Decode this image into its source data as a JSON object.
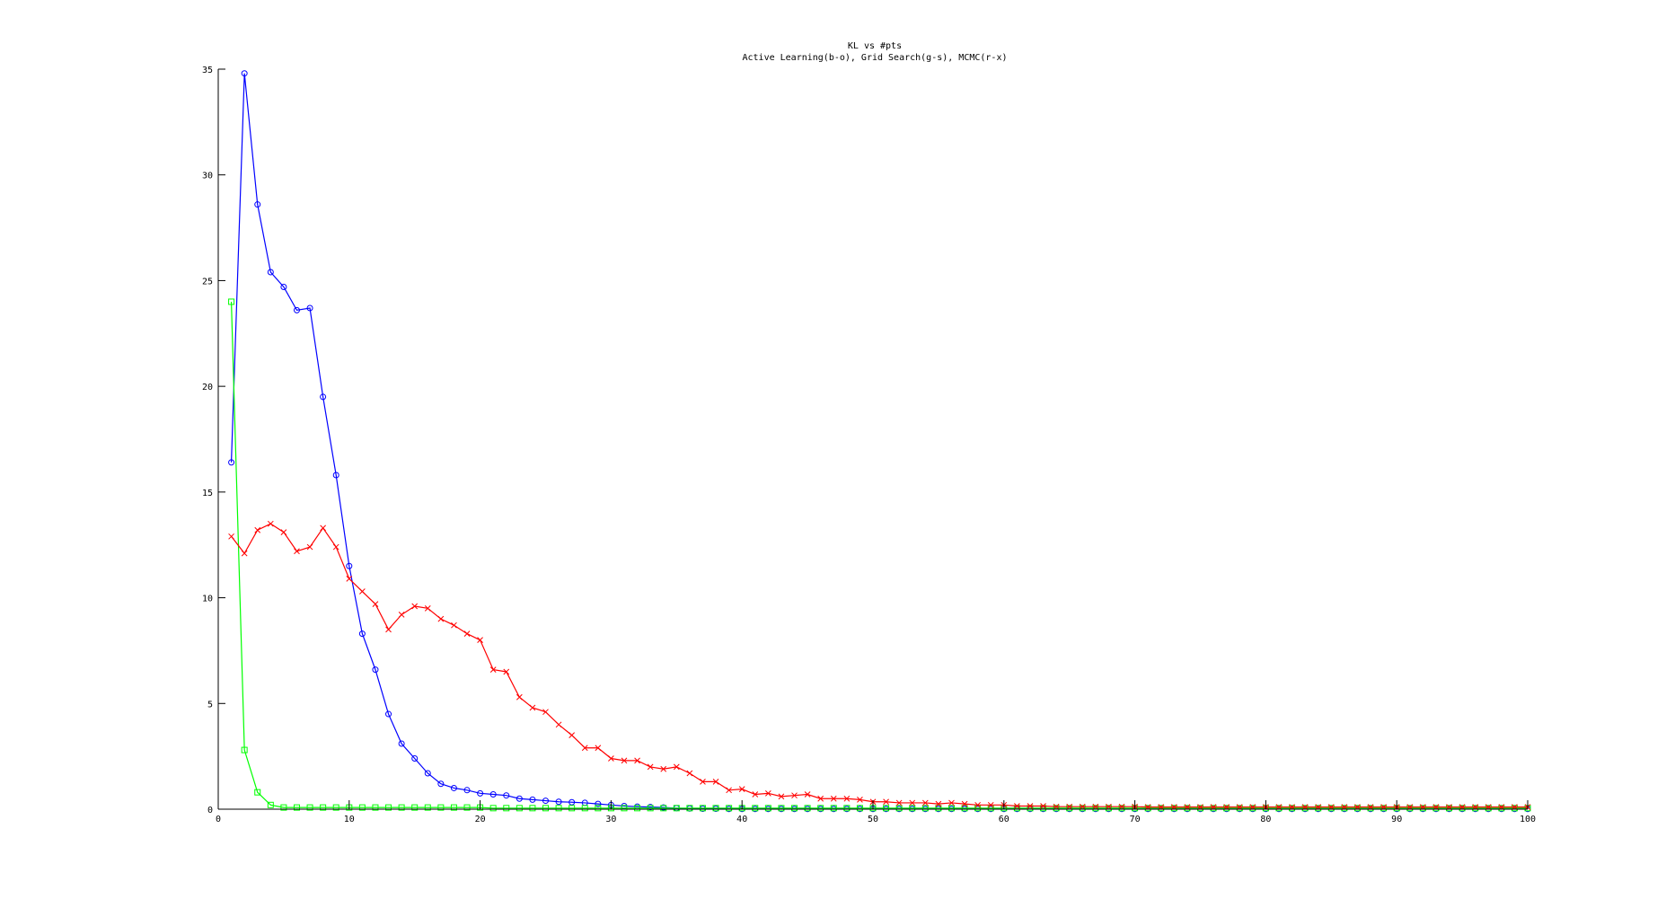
{
  "chart_data": {
    "type": "line",
    "title": "KL vs #pts",
    "subtitle": "Active Learning(b-o), Grid Search(g-s), MCMC(r-x)",
    "xlabel": "",
    "ylabel": "",
    "xlim": [
      0,
      100
    ],
    "ylim": [
      0,
      35
    ],
    "xticks": [
      0,
      10,
      20,
      30,
      40,
      50,
      60,
      70,
      80,
      90,
      100
    ],
    "yticks": [
      0,
      5,
      10,
      15,
      20,
      25,
      30,
      35
    ],
    "grid": false,
    "legend": "none",
    "x": [
      1,
      2,
      3,
      4,
      5,
      6,
      7,
      8,
      9,
      10,
      11,
      12,
      13,
      14,
      15,
      16,
      17,
      18,
      19,
      20,
      21,
      22,
      23,
      24,
      25,
      26,
      27,
      28,
      29,
      30,
      31,
      32,
      33,
      34,
      35,
      36,
      37,
      38,
      39,
      40,
      41,
      42,
      43,
      44,
      45,
      46,
      47,
      48,
      49,
      50,
      51,
      52,
      53,
      54,
      55,
      56,
      57,
      58,
      59,
      60,
      61,
      62,
      63,
      64,
      65,
      66,
      67,
      68,
      69,
      70,
      71,
      72,
      73,
      74,
      75,
      76,
      77,
      78,
      79,
      80,
      81,
      82,
      83,
      84,
      85,
      86,
      87,
      88,
      89,
      90,
      91,
      92,
      93,
      94,
      95,
      96,
      97,
      98,
      99,
      100
    ],
    "series": [
      {
        "color": "#0000ff",
        "marker": "circle",
        "values": [
          16.4,
          34.8,
          28.6,
          25.4,
          24.7,
          23.6,
          23.7,
          19.5,
          15.8,
          11.5,
          8.3,
          6.6,
          4.5,
          3.1,
          2.4,
          1.7,
          1.2,
          1.0,
          0.9,
          0.75,
          0.7,
          0.65,
          0.5,
          0.45,
          0.4,
          0.35,
          0.33,
          0.3,
          0.25,
          0.2,
          0.15,
          0.12,
          0.1,
          0.08,
          0.05,
          0.03,
          0.02,
          0.02,
          0.01,
          0.01,
          0.01,
          0.01,
          0.01,
          0.01,
          0.01,
          0.01,
          0.01,
          0.01,
          0.01,
          0.01,
          0.01,
          0.01,
          0.01,
          0.01,
          0.01,
          0.01,
          0.01,
          0.01,
          0.01,
          0.01,
          0.01,
          0.01,
          0.01,
          0.01,
          0.01,
          0.01,
          0.01,
          0.01,
          0.01,
          0.01,
          0.01,
          0.01,
          0.01,
          0.01,
          0.01,
          0.01,
          0.01,
          0.01,
          0.01,
          0.01,
          0.01,
          0.01,
          0.01,
          0.01,
          0.01,
          0.01,
          0.01,
          0.01,
          0.01,
          0.01,
          0.01,
          0.01,
          0.01,
          0.01,
          0.01,
          0.01,
          0.01,
          0.01,
          0.01,
          0.01
        ]
      },
      {
        "color": "#00ff00",
        "marker": "square",
        "values": [
          24.0,
          2.8,
          0.8,
          0.2,
          0.08,
          0.08,
          0.08,
          0.08,
          0.08,
          0.08,
          0.08,
          0.08,
          0.08,
          0.08,
          0.08,
          0.08,
          0.08,
          0.08,
          0.08,
          0.08,
          0.05,
          0.05,
          0.05,
          0.05,
          0.05,
          0.05,
          0.05,
          0.05,
          0.05,
          0.05,
          0.05,
          0.05,
          0.05,
          0.05,
          0.05,
          0.05,
          0.05,
          0.05,
          0.05,
          0.05,
          0.05,
          0.05,
          0.05,
          0.05,
          0.05,
          0.05,
          0.05,
          0.05,
          0.05,
          0.05,
          0.05,
          0.05,
          0.05,
          0.05,
          0.05,
          0.05,
          0.05,
          0.05,
          0.05,
          0.05,
          0.05,
          0.05,
          0.05,
          0.05,
          0.05,
          0.05,
          0.05,
          0.05,
          0.05,
          0.05,
          0.05,
          0.05,
          0.05,
          0.05,
          0.05,
          0.05,
          0.05,
          0.05,
          0.05,
          0.05,
          0.05,
          0.05,
          0.05,
          0.05,
          0.05,
          0.05,
          0.05,
          0.05,
          0.05,
          0.05,
          0.05,
          0.05,
          0.05,
          0.05,
          0.05,
          0.05,
          0.05,
          0.05,
          0.05,
          0.05
        ]
      },
      {
        "color": "#ff0000",
        "marker": "x",
        "values": [
          12.9,
          12.1,
          13.2,
          13.5,
          13.1,
          12.2,
          12.4,
          13.3,
          12.4,
          10.9,
          10.3,
          9.7,
          8.5,
          9.2,
          9.6,
          9.5,
          9.0,
          8.7,
          8.3,
          8.0,
          6.6,
          6.5,
          5.3,
          4.8,
          4.6,
          4.0,
          3.5,
          2.9,
          2.9,
          2.4,
          2.3,
          2.3,
          2.0,
          1.9,
          2.0,
          1.7,
          1.3,
          1.3,
          0.9,
          0.95,
          0.7,
          0.75,
          0.6,
          0.65,
          0.7,
          0.5,
          0.5,
          0.5,
          0.45,
          0.35,
          0.35,
          0.3,
          0.3,
          0.3,
          0.25,
          0.3,
          0.25,
          0.2,
          0.2,
          0.2,
          0.15,
          0.15,
          0.15,
          0.12,
          0.12,
          0.12,
          0.12,
          0.12,
          0.12,
          0.12,
          0.1,
          0.1,
          0.1,
          0.1,
          0.1,
          0.1,
          0.1,
          0.1,
          0.1,
          0.1,
          0.1,
          0.1,
          0.1,
          0.1,
          0.1,
          0.1,
          0.1,
          0.1,
          0.1,
          0.1,
          0.1,
          0.1,
          0.1,
          0.1,
          0.1,
          0.1,
          0.1,
          0.1,
          0.1,
          0.1
        ]
      }
    ]
  }
}
